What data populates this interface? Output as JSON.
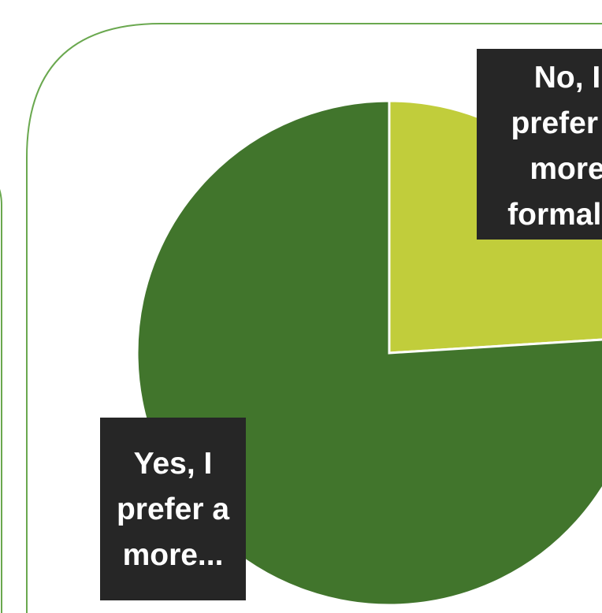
{
  "chart_data": {
    "type": "pie",
    "slices": [
      {
        "label_lines": [
          "No, I",
          "prefer a",
          "more",
          "formal..."
        ],
        "value": 24,
        "color": "#c1cd3b"
      },
      {
        "label_lines": [
          "Yes, I",
          "prefer a",
          "more..."
        ],
        "value": 76,
        "color": "#41752c"
      }
    ],
    "start_angle_deg": 0,
    "direction": "clockwise",
    "slice_border_color": "#ffffff",
    "frame_color": "#6aa84f"
  }
}
